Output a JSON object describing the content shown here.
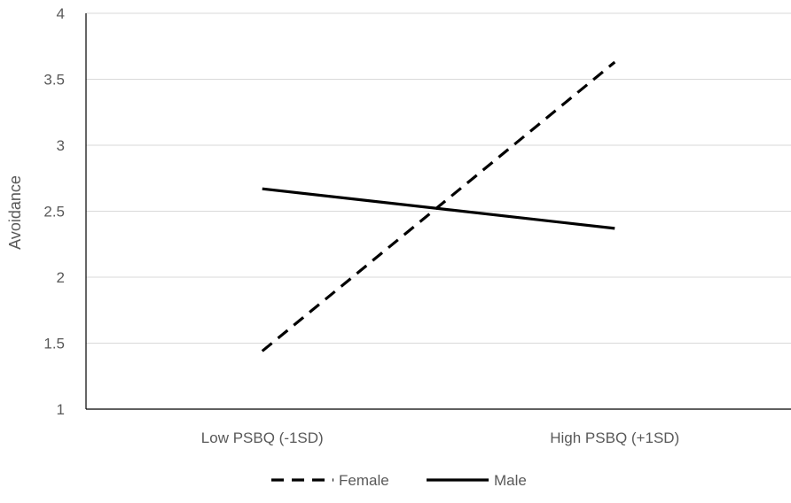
{
  "chart_data": {
    "type": "line",
    "title": "",
    "xlabel": "",
    "ylabel": "Avoidance",
    "categories": [
      "Low PSBQ (-1SD)",
      "High PSBQ (+1SD)"
    ],
    "ylim": [
      1,
      4
    ],
    "yticks": [
      1,
      1.5,
      2,
      2.5,
      3,
      3.5,
      4
    ],
    "ytick_labels": [
      "1",
      "1.5",
      "2",
      "2.5",
      "3",
      "3.5",
      "4"
    ],
    "grid": true,
    "legend_position": "bottom",
    "series": [
      {
        "name": "Female",
        "values": [
          1.44,
          3.63
        ],
        "style": "dashed",
        "color": "#000000"
      },
      {
        "name": "Male",
        "values": [
          2.67,
          2.37
        ],
        "style": "solid",
        "color": "#000000"
      }
    ],
    "colors": {
      "gridline": "#d9d9d9",
      "axis": "#000000",
      "text": "#595959"
    }
  }
}
